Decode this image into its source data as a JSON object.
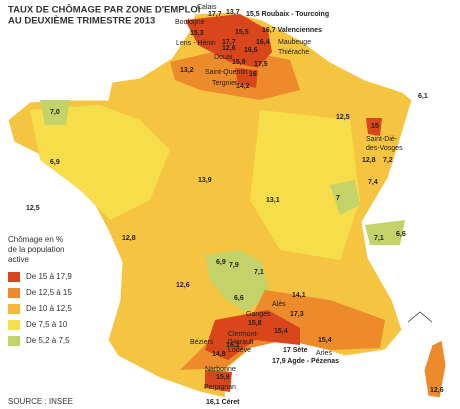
{
  "header": {
    "title": [
      "TAUX DE CHÔMAGE PAR ZONE D'EMPLOI",
      "AU DEUXIÈME TRIMESTRE 2013"
    ]
  },
  "legend": {
    "title": [
      "Chômage en %",
      "de la population",
      "active"
    ],
    "items": [
      {
        "label": "De 15 à 17,9",
        "color": "#d9461c"
      },
      {
        "label": "De 12,5 à 15",
        "color": "#ec8a2c"
      },
      {
        "label": "De 10 à 12,5",
        "color": "#f5b83c"
      },
      {
        "label": "De 7,5 à 10",
        "color": "#f6de4a"
      },
      {
        "label": "De 5,2 à 7,5",
        "color": "#c3d36a"
      }
    ]
  },
  "map_labels": [
    "Calais",
    "Boulogne",
    "15,3",
    "17,7",
    "13,7",
    "15,5 Roubaix - Tourcoing",
    "16,7 Valenciennes",
    "Maubeuge",
    "Lens - Hénin",
    "17,7",
    "16,4",
    "15,5",
    "Douai",
    "15,9",
    "16,6",
    "17,5",
    "Thiérache",
    "13,2",
    "12,6",
    "Saint-Quentin",
    "16",
    "Tergnier",
    "14,2",
    "15",
    "Saint-Dié-",
    "des-Vosges",
    "6,1",
    "12,5",
    "12,8",
    "7,2",
    "7,4",
    "7",
    "7,1",
    "6,6",
    "7,0",
    "6,9",
    "12,5",
    "13,9",
    "13,1",
    "12,8",
    "6,9",
    "7,9",
    "7,1",
    "6,6",
    "12,6",
    "14,1",
    "Alès",
    "Ganges",
    "17,3",
    "15,8",
    "Clermont-",
    "l'Hérault",
    "Lodève",
    "15,4",
    "Béziers",
    "16,2",
    "15,4",
    "Arles",
    "17 Sète",
    "17,9 Agde - Pézenas",
    "14,8",
    "Narbonne",
    "15,9",
    "Perpignan",
    "16,1 Céret",
    "12,6"
  ],
  "source": "SOURCE : INSEE"
}
